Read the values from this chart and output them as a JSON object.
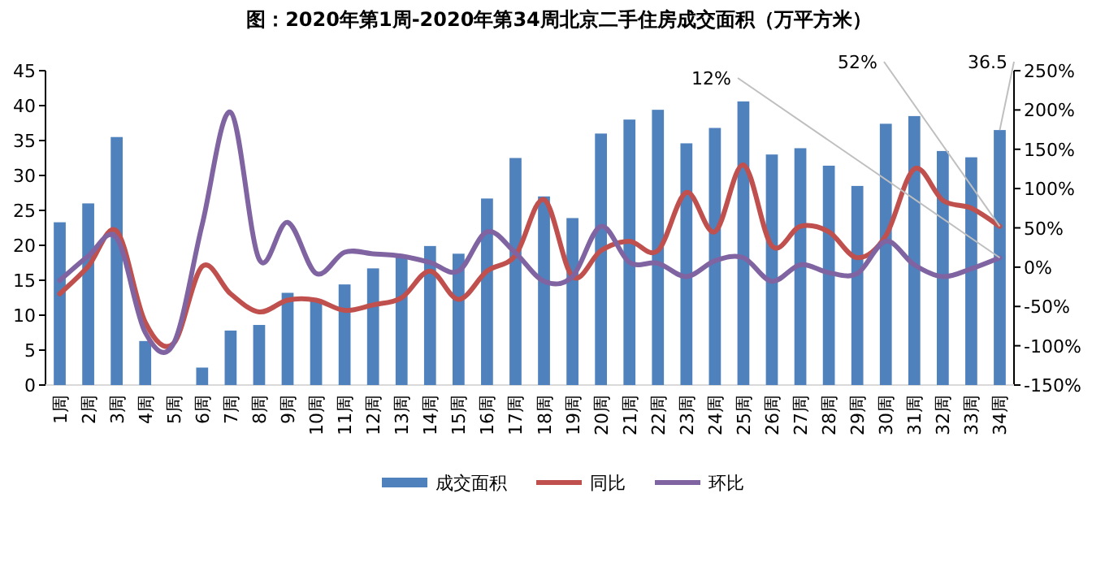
{
  "chart_data": {
    "type": "bar",
    "title": "图：2020年第1周-2020年第34周北京二手住房成交面积（万平方米）",
    "categories": [
      "1周",
      "2周",
      "3周",
      "4周",
      "5周",
      "6周",
      "7周",
      "8周",
      "9周",
      "10周",
      "11周",
      "12周",
      "13周",
      "14周",
      "15周",
      "16周",
      "17周",
      "18周",
      "19周",
      "20周",
      "21周",
      "22周",
      "23周",
      "24周",
      "25周",
      "26周",
      "27周",
      "28周",
      "29周",
      "30周",
      "31周",
      "32周",
      "33周",
      "34周"
    ],
    "series": [
      {
        "name": "成交面积",
        "color": "#4f81bd",
        "values": [
          23.3,
          26,
          35.5,
          6.3,
          0,
          2.5,
          7.8,
          8.6,
          13.2,
          12.2,
          14.4,
          16.7,
          18.6,
          19.9,
          18.8,
          26.7,
          32.5,
          27,
          23.9,
          36,
          38,
          39.4,
          34.6,
          36.8,
          40.6,
          33,
          33.9,
          31.4,
          28.5,
          37.4,
          38.5,
          33.5,
          32.6,
          36.5
        ],
        "value_labels": [
          null,
          null,
          null,
          null,
          null,
          null,
          null,
          null,
          null,
          null,
          null,
          null,
          null,
          null,
          null,
          null,
          null,
          null,
          null,
          null,
          null,
          null,
          null,
          null,
          null,
          null,
          null,
          null,
          null,
          null,
          null,
          null,
          null,
          "36.5"
        ]
      },
      {
        "name": "同比",
        "type": "line",
        "axis": "y2",
        "color": "#c0504d",
        "values": [
          -34,
          1,
          46,
          -70,
          -97,
          1,
          -34,
          -57,
          -42,
          -42,
          -55,
          -48,
          -39,
          -5,
          -41,
          -5,
          15,
          86,
          -12,
          21,
          33,
          21,
          95,
          45,
          130,
          27,
          52,
          45,
          12,
          40,
          125,
          85,
          75,
          52
        ],
        "value_labels": [
          null,
          null,
          null,
          null,
          null,
          null,
          null,
          null,
          null,
          null,
          null,
          null,
          null,
          null,
          null,
          null,
          null,
          null,
          null,
          null,
          null,
          null,
          null,
          null,
          null,
          null,
          null,
          null,
          null,
          null,
          null,
          null,
          null,
          "52%"
        ]
      },
      {
        "name": "环比",
        "type": "line",
        "axis": "y2",
        "color": "#8064a2",
        "values": [
          -17,
          14,
          37,
          -83,
          -97,
          54,
          197,
          10,
          57,
          -8,
          19,
          17,
          14,
          6,
          -5,
          45,
          18,
          -18,
          -12,
          52,
          6,
          5,
          -12,
          8,
          12,
          -18,
          3,
          -7,
          -8,
          33,
          3,
          -12,
          -2,
          12
        ],
        "value_labels": [
          null,
          null,
          null,
          null,
          null,
          null,
          null,
          null,
          null,
          null,
          null,
          null,
          null,
          null,
          null,
          null,
          null,
          null,
          null,
          null,
          null,
          null,
          null,
          null,
          null,
          null,
          null,
          null,
          null,
          null,
          null,
          null,
          null,
          "12%"
        ]
      }
    ],
    "ylim": [
      0,
      45
    ],
    "yticks": [
      0,
      5,
      10,
      15,
      20,
      25,
      30,
      35,
      40,
      45
    ],
    "y2lim": [
      -150,
      250
    ],
    "y2ticks": [
      {
        "value": -150,
        "label": "-150%"
      },
      {
        "value": -100,
        "label": "-100%"
      },
      {
        "value": -50,
        "label": "-50%"
      },
      {
        "value": 0,
        "label": "0%"
      },
      {
        "value": 50,
        "label": "50%"
      },
      {
        "value": 100,
        "label": "100%"
      },
      {
        "value": 150,
        "label": "150%"
      },
      {
        "value": 200,
        "label": "200%"
      },
      {
        "value": 250,
        "label": "250%"
      }
    ],
    "grid": false,
    "legend": "bottom"
  }
}
